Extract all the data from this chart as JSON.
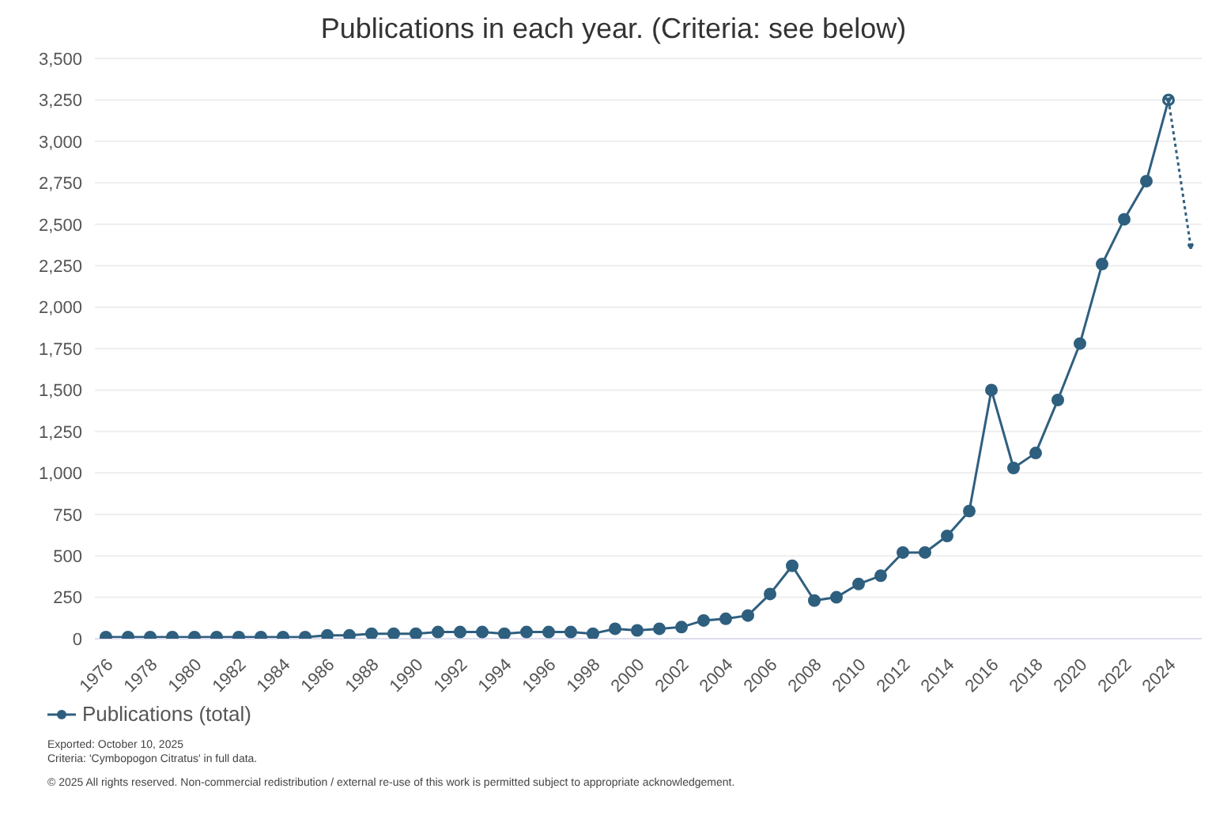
{
  "chart_data": {
    "type": "line",
    "title": "Publications in each year. (Criteria: see below)",
    "categories": [
      "1976",
      null,
      "1978",
      null,
      "1980",
      null,
      "1982",
      null,
      "1984",
      null,
      "1986",
      null,
      "1988",
      null,
      "1990",
      null,
      "1992",
      null,
      "1994",
      null,
      "1996",
      null,
      "1998",
      null,
      "2000",
      null,
      "2002",
      null,
      "2004",
      null,
      "2006",
      null,
      "2008",
      null,
      "2010",
      null,
      "2012",
      null,
      "2014",
      null,
      "2016",
      null,
      "2018",
      null,
      "2020",
      null,
      "2022",
      null,
      "2024",
      null
    ],
    "series": [
      {
        "name": "Publications (total)",
        "color": "#2f5f7f",
        "line_style": "solid",
        "values": [
          10,
          10,
          10,
          10,
          10,
          10,
          10,
          10,
          10,
          10,
          20,
          20,
          30,
          30,
          30,
          40,
          40,
          40,
          30,
          40,
          40,
          40,
          30,
          60,
          50,
          60,
          70,
          110,
          120,
          140,
          270,
          440,
          230,
          250,
          330,
          380,
          520,
          520,
          620,
          770,
          1500,
          1030,
          1120,
          1440,
          1780,
          2260,
          2530,
          2760,
          3250,
          null
        ]
      },
      {
        "color": "#2f5f7f",
        "line_style": "dotted",
        "values": [
          null,
          null,
          null,
          null,
          null,
          null,
          null,
          null,
          null,
          null,
          null,
          null,
          null,
          null,
          null,
          null,
          null,
          null,
          null,
          null,
          null,
          null,
          null,
          null,
          null,
          null,
          null,
          null,
          null,
          null,
          null,
          null,
          null,
          null,
          null,
          null,
          null,
          null,
          null,
          null,
          null,
          null,
          null,
          null,
          null,
          null,
          null,
          null,
          3250,
          2370
        ]
      }
    ],
    "ylim": [
      0,
      3500
    ],
    "yticks": [
      {
        "value": 0,
        "label": "0"
      },
      {
        "value": 250,
        "label": "250"
      },
      {
        "value": 500,
        "label": "500"
      },
      {
        "value": 750,
        "label": "750"
      },
      {
        "value": 1000,
        "label": "1,000"
      },
      {
        "value": 1250,
        "label": "1,250"
      },
      {
        "value": 1500,
        "label": "1,500"
      },
      {
        "value": 1750,
        "label": "1,750"
      },
      {
        "value": 2000,
        "label": "2,000"
      },
      {
        "value": 2250,
        "label": "2,250"
      },
      {
        "value": 2500,
        "label": "2,500"
      },
      {
        "value": 2750,
        "label": "2,750"
      },
      {
        "value": 3000,
        "label": "3,000"
      },
      {
        "value": 3250,
        "label": "3,250"
      },
      {
        "value": 3500,
        "label": "3,500"
      }
    ],
    "grid": "y",
    "marker": "circle",
    "legend": "bottom left",
    "annotations": [
      "Exported: October 10, 2025",
      "Criteria: 'Cymbopogon Citratus' in full data.",
      "© 2025 All rights reserved. Non-commercial redistribution / external re-use of this work is permitted subject to appropriate acknowledgement."
    ]
  }
}
